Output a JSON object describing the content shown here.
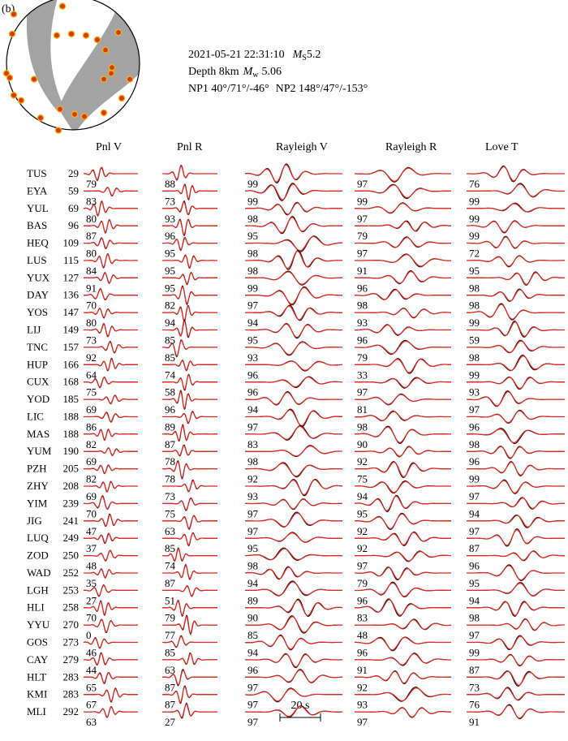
{
  "panel_label": "(b)",
  "event": {
    "line1": {
      "datetime": "2021-05-21 22:31:10",
      "mag_symbol": "M",
      "mag_sub": "S",
      "mag_value": "5.2"
    },
    "line2": {
      "depth": "Depth 8km",
      "mag_symbol": "M",
      "mag_sub": "w",
      "mag_value": "5.06"
    },
    "line3": {
      "np1": "NP1 40°/71°/-46°",
      "np2": "NP2 148°/47°/-153°"
    }
  },
  "stations": [
    {
      "name": "TUS",
      "distance": 29
    },
    {
      "name": "EYA",
      "distance": 59
    },
    {
      "name": "YUL",
      "distance": 69
    },
    {
      "name": "BAS",
      "distance": 96
    },
    {
      "name": "HEQ",
      "distance": 109
    },
    {
      "name": "LUS",
      "distance": 115
    },
    {
      "name": "YUX",
      "distance": 127
    },
    {
      "name": "DAY",
      "distance": 136
    },
    {
      "name": "YOS",
      "distance": 147
    },
    {
      "name": "LIJ",
      "distance": 149
    },
    {
      "name": "TNC",
      "distance": 157
    },
    {
      "name": "HUP",
      "distance": 166
    },
    {
      "name": "CUX",
      "distance": 168
    },
    {
      "name": "YOD",
      "distance": 185
    },
    {
      "name": "LIC",
      "distance": 188
    },
    {
      "name": "MAS",
      "distance": 188
    },
    {
      "name": "YUM",
      "distance": 190
    },
    {
      "name": "PZH",
      "distance": 205
    },
    {
      "name": "ZHY",
      "distance": 208
    },
    {
      "name": "YIM",
      "distance": 239
    },
    {
      "name": "JIG",
      "distance": 241
    },
    {
      "name": "LUQ",
      "distance": 249
    },
    {
      "name": "ZOD",
      "distance": 250
    },
    {
      "name": "WAD",
      "distance": 252
    },
    {
      "name": "LGH",
      "distance": 253
    },
    {
      "name": "HLI",
      "distance": 258
    },
    {
      "name": "YYU",
      "distance": 270
    },
    {
      "name": "GOS",
      "distance": 273
    },
    {
      "name": "CAY",
      "distance": 279
    },
    {
      "name": "HLT",
      "distance": 283
    },
    {
      "name": "KMI",
      "distance": 283
    },
    {
      "name": "MLI",
      "distance": 292
    }
  ],
  "columns": [
    {
      "name": "Pnl V",
      "values": [
        79,
        83,
        80,
        87,
        80,
        84,
        91,
        70,
        80,
        73,
        92,
        64,
        75,
        69,
        86,
        82,
        69,
        82,
        69,
        70,
        47,
        37,
        48,
        35,
        27,
        70,
        0,
        46,
        44,
        65,
        67,
        63
      ]
    },
    {
      "name": "Pnl R",
      "values": [
        88,
        73,
        93,
        96,
        95,
        95,
        95,
        82,
        94,
        85,
        85,
        74,
        58,
        96,
        89,
        87,
        78,
        78,
        73,
        75,
        63,
        85,
        74,
        87,
        51,
        79,
        77,
        85,
        63,
        87,
        87,
        27
      ]
    },
    {
      "name": "Rayleigh V",
      "values": [
        99,
        99,
        98,
        95,
        98,
        98,
        99,
        97,
        94,
        95,
        93,
        96,
        96,
        94,
        97,
        83,
        98,
        92,
        93,
        97,
        97,
        95,
        98,
        94,
        89,
        90,
        85,
        94,
        96,
        97,
        97,
        97
      ]
    },
    {
      "name": "Rayleigh R",
      "values": [
        97,
        99,
        97,
        79,
        97,
        91,
        96,
        98,
        93,
        96,
        79,
        33,
        97,
        81,
        98,
        90,
        92,
        75,
        94,
        95,
        92,
        92,
        97,
        79,
        96,
        83,
        48,
        96,
        91,
        92,
        93,
        97
      ]
    },
    {
      "name": "Love T",
      "values": [
        76,
        99,
        99,
        99,
        72,
        95,
        98,
        98,
        99,
        59,
        98,
        99,
        93,
        97,
        96,
        98,
        96,
        99,
        97,
        94,
        97,
        87,
        96,
        95,
        94,
        98,
        97,
        99,
        87,
        73,
        76,
        91
      ]
    }
  ],
  "scale_bar": "20 s"
}
